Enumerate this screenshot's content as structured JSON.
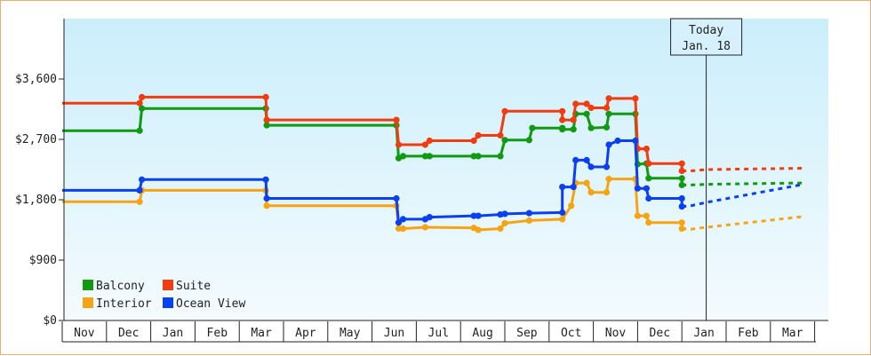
{
  "chart_data": {
    "type": "line",
    "step": true,
    "title": "",
    "xlabel": "",
    "ylabel": "",
    "ylim": [
      0,
      4500
    ],
    "y_ticks": [
      0,
      900,
      1800,
      2700,
      3600
    ],
    "y_tick_labels": [
      "$0",
      "$900",
      "$1,800",
      "$2,700",
      "$3,600"
    ],
    "x_tick_labels": [
      "Nov",
      "Dec",
      "Jan",
      "Feb",
      "Mar",
      "Apr",
      "May",
      "Jun",
      "Jul",
      "Aug",
      "Sep",
      "Oct",
      "Nov",
      "Dec",
      "Jan",
      "Feb",
      "Mar"
    ],
    "grid": false,
    "legend_position": "bottom-left",
    "today_marker": {
      "line1": "Today",
      "line2": "Jan. 18",
      "x": 14.55
    },
    "series": [
      {
        "name": "Balcony",
        "color": "#119911",
        "points": [
          [
            0.0,
            2830
          ],
          [
            1.75,
            2830
          ],
          [
            1.8,
            3160
          ],
          [
            4.6,
            3160
          ],
          [
            4.62,
            2910
          ],
          [
            7.55,
            2910
          ],
          [
            7.6,
            2420
          ],
          [
            7.7,
            2450
          ],
          [
            8.2,
            2450
          ],
          [
            8.3,
            2450
          ],
          [
            9.3,
            2450
          ],
          [
            9.4,
            2450
          ],
          [
            9.9,
            2450
          ],
          [
            10.0,
            2690
          ],
          [
            10.55,
            2690
          ],
          [
            10.62,
            2870
          ],
          [
            11.3,
            2870
          ],
          [
            11.3,
            2850
          ],
          [
            11.55,
            2850
          ],
          [
            11.6,
            3080
          ],
          [
            11.85,
            3080
          ],
          [
            11.95,
            2870
          ],
          [
            12.3,
            2880
          ],
          [
            12.35,
            3080
          ],
          [
            12.95,
            3080
          ],
          [
            13.0,
            2330
          ],
          [
            13.2,
            2340
          ],
          [
            13.25,
            2120
          ],
          [
            14.0,
            2120
          ],
          [
            14.0,
            2020
          ]
        ],
        "forecast": [
          [
            14.2,
            2020
          ],
          [
            14.55,
            2030
          ],
          [
            16.75,
            2050
          ]
        ]
      },
      {
        "name": "Interior",
        "color": "#f5a514",
        "points": [
          [
            0.0,
            1770
          ],
          [
            1.75,
            1770
          ],
          [
            1.8,
            1940
          ],
          [
            4.6,
            1940
          ],
          [
            4.62,
            1710
          ],
          [
            7.55,
            1710
          ],
          [
            7.6,
            1370
          ],
          [
            7.7,
            1370
          ],
          [
            8.2,
            1390
          ],
          [
            9.3,
            1380
          ],
          [
            9.4,
            1350
          ],
          [
            9.9,
            1370
          ],
          [
            10.0,
            1450
          ],
          [
            10.55,
            1490
          ],
          [
            11.3,
            1510
          ],
          [
            11.5,
            1710
          ],
          [
            11.6,
            2050
          ],
          [
            11.85,
            2050
          ],
          [
            11.95,
            1910
          ],
          [
            12.3,
            1910
          ],
          [
            12.35,
            2110
          ],
          [
            12.95,
            2110
          ],
          [
            13.0,
            1560
          ],
          [
            13.2,
            1560
          ],
          [
            13.25,
            1460
          ],
          [
            14.0,
            1460
          ],
          [
            14.0,
            1370
          ]
        ],
        "forecast": [
          [
            14.2,
            1360
          ],
          [
            14.55,
            1390
          ],
          [
            16.75,
            1550
          ]
        ]
      },
      {
        "name": "Suite",
        "color": "#f03c0f",
        "points": [
          [
            0.0,
            3240
          ],
          [
            1.75,
            3240
          ],
          [
            1.8,
            3330
          ],
          [
            4.6,
            3330
          ],
          [
            4.62,
            2990
          ],
          [
            7.55,
            2990
          ],
          [
            7.6,
            2620
          ],
          [
            8.2,
            2620
          ],
          [
            8.3,
            2680
          ],
          [
            9.3,
            2680
          ],
          [
            9.4,
            2760
          ],
          [
            9.9,
            2760
          ],
          [
            10.0,
            3120
          ],
          [
            11.3,
            3120
          ],
          [
            11.3,
            2990
          ],
          [
            11.55,
            2990
          ],
          [
            11.6,
            3230
          ],
          [
            11.85,
            3230
          ],
          [
            11.95,
            3170
          ],
          [
            12.3,
            3170
          ],
          [
            12.35,
            3310
          ],
          [
            12.95,
            3310
          ],
          [
            13.0,
            2560
          ],
          [
            13.2,
            2560
          ],
          [
            13.25,
            2340
          ],
          [
            14.0,
            2340
          ],
          [
            14.0,
            2230
          ]
        ],
        "forecast": [
          [
            14.2,
            2230
          ],
          [
            14.55,
            2250
          ],
          [
            16.75,
            2270
          ]
        ]
      },
      {
        "name": "Ocean View",
        "color": "#0a40f0",
        "points": [
          [
            0.0,
            1940
          ],
          [
            1.75,
            1940
          ],
          [
            1.8,
            2100
          ],
          [
            4.6,
            2100
          ],
          [
            4.62,
            1820
          ],
          [
            7.55,
            1820
          ],
          [
            7.6,
            1460
          ],
          [
            7.7,
            1510
          ],
          [
            8.2,
            1510
          ],
          [
            8.3,
            1540
          ],
          [
            9.3,
            1560
          ],
          [
            9.4,
            1560
          ],
          [
            9.9,
            1580
          ],
          [
            10.0,
            1590
          ],
          [
            10.55,
            1600
          ],
          [
            11.3,
            1610
          ],
          [
            11.3,
            1990
          ],
          [
            11.55,
            1990
          ],
          [
            11.6,
            2390
          ],
          [
            11.85,
            2390
          ],
          [
            11.95,
            2290
          ],
          [
            12.3,
            2290
          ],
          [
            12.35,
            2620
          ],
          [
            12.55,
            2680
          ],
          [
            12.95,
            2680
          ],
          [
            13.0,
            1970
          ],
          [
            13.2,
            1970
          ],
          [
            13.25,
            1820
          ],
          [
            14.0,
            1820
          ],
          [
            14.0,
            1700
          ]
        ],
        "forecast": [
          [
            14.2,
            1710
          ],
          [
            14.55,
            1760
          ],
          [
            16.75,
            2030
          ]
        ]
      }
    ]
  }
}
